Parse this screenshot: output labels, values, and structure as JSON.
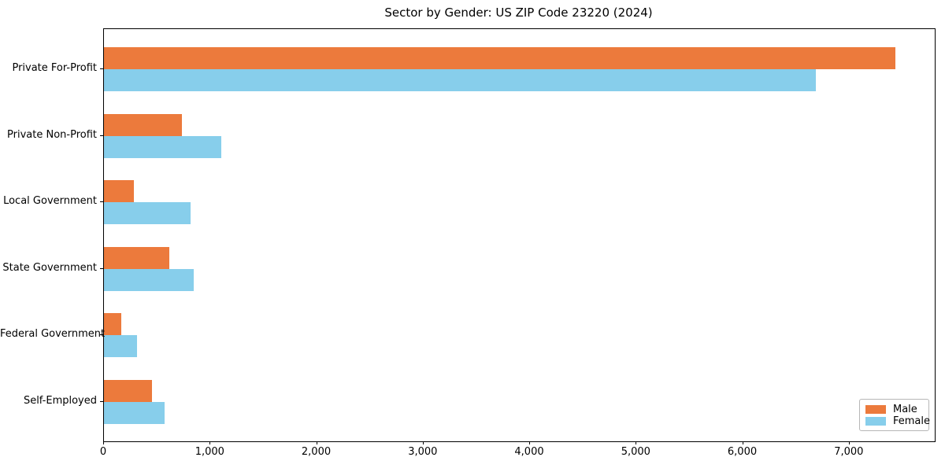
{
  "chart_data": {
    "type": "bar",
    "orientation": "horizontal",
    "title": "Sector by Gender: US ZIP Code 23220 (2024)",
    "xlabel": "",
    "ylabel": "",
    "categories": [
      "Private For-Profit",
      "Private Non-Profit",
      "Local Government",
      "State Government",
      "Federal Government",
      "Self-Employed"
    ],
    "series": [
      {
        "name": "Male",
        "color": "#ec7a3c",
        "values": [
          7430,
          730,
          280,
          615,
          160,
          450
        ]
      },
      {
        "name": "Female",
        "color": "#87ceeb",
        "values": [
          6680,
          1100,
          810,
          840,
          310,
          570
        ]
      }
    ],
    "xlim": [
      0,
      7800
    ],
    "xticks": [
      0,
      1000,
      2000,
      3000,
      4000,
      5000,
      6000,
      7000
    ],
    "xtick_labels": [
      "0",
      "1,000",
      "2,000",
      "3,000",
      "4,000",
      "5,000",
      "6,000",
      "7,000"
    ],
    "grid": false,
    "legend": {
      "position": "lower right",
      "entries": [
        "Male",
        "Female"
      ]
    }
  }
}
